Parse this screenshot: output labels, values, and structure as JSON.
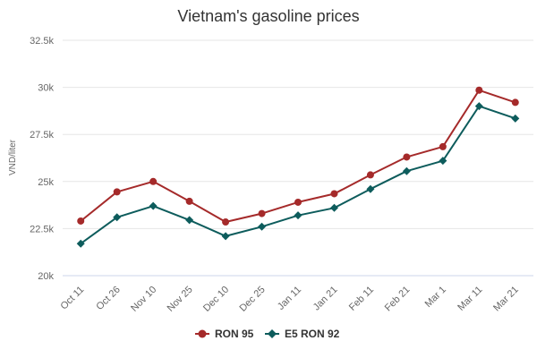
{
  "chart_data": {
    "type": "line",
    "title": "Vietnam's gasoline prices",
    "ylabel": "VND/liter",
    "xlabel": "",
    "categories": [
      "Oct 11",
      "Oct 26",
      "Nov 10",
      "Nov 25",
      "Dec 10",
      "Dec 25",
      "Jan 11",
      "Jan 21",
      "Feb 11",
      "Feb 21",
      "Mar 1",
      "Mar 11",
      "Mar 21"
    ],
    "ylim": [
      20000,
      32500
    ],
    "yticks": [
      20000,
      22500,
      25000,
      27500,
      30000,
      32500
    ],
    "ytick_labels": [
      "20k",
      "22.5k",
      "25k",
      "27.5k",
      "30k",
      "32.5k"
    ],
    "grid": true,
    "legend_position": "bottom-center",
    "series": [
      {
        "name": "RON 95",
        "color": "#a52a2a",
        "marker": "circle",
        "values": [
          22900,
          24450,
          25000,
          23950,
          22850,
          23300,
          23900,
          24350,
          25350,
          26300,
          26850,
          29850,
          29200
        ]
      },
      {
        "name": "E5 RON 92",
        "color": "#0d5c5c",
        "marker": "diamond",
        "values": [
          21700,
          23100,
          23700,
          22950,
          22100,
          22600,
          23200,
          23600,
          24600,
          25550,
          26100,
          29000,
          28350
        ]
      }
    ]
  }
}
